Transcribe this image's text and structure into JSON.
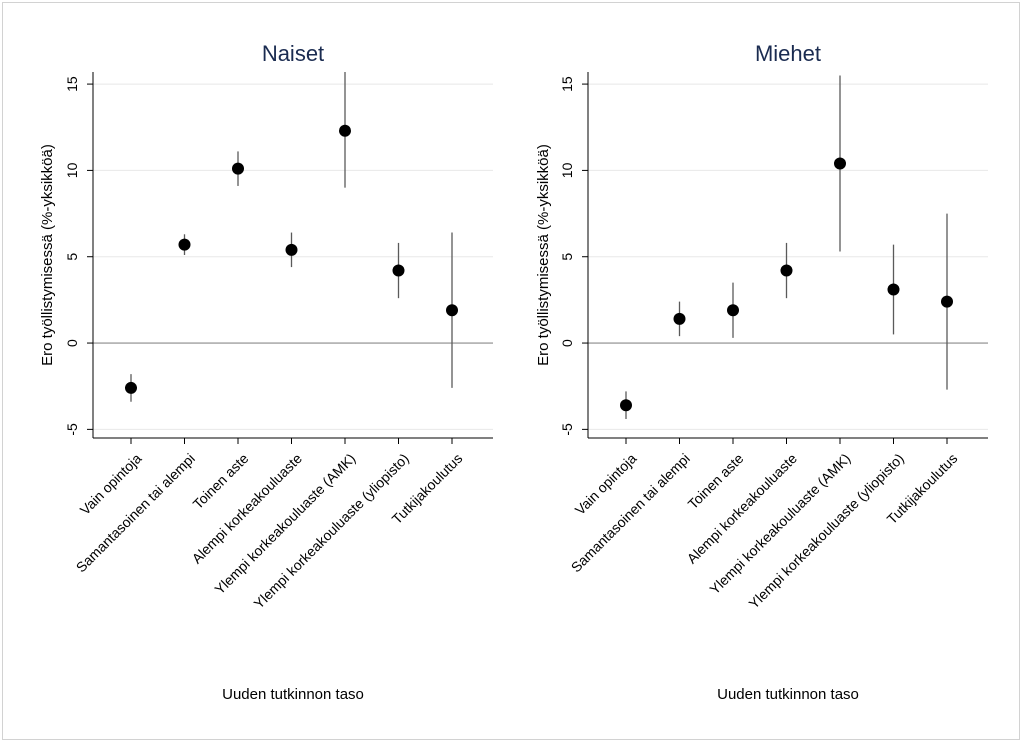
{
  "chart_data": [
    {
      "type": "scatter",
      "title": "Naiset",
      "xlabel": "Uuden tutkinnon taso",
      "ylabel": "Ero työllistymisessä (%-yksikköä)",
      "ylim": [
        -5.5,
        15.7
      ],
      "yticks": [
        -5,
        0,
        5,
        10,
        15
      ],
      "ytick_labels": [
        "-5",
        "0",
        "5",
        "10",
        "15"
      ],
      "grid": true,
      "reference_line_y": 0,
      "categories": [
        "Vain opintoja",
        "Samantasoinen tai alempi",
        "Toinen aste",
        "Alempi korkeakouluaste",
        "Ylempi korkeakouluaste (AMK)",
        "Ylempi korkeakouluaste (yliopisto)",
        "Tutkijakoulutus"
      ],
      "values": [
        -2.6,
        5.7,
        10.1,
        5.4,
        12.3,
        4.2,
        1.9
      ],
      "ci_low": [
        -3.4,
        5.1,
        9.1,
        4.4,
        9.0,
        2.6,
        -2.6
      ],
      "ci_high": [
        -1.8,
        6.3,
        11.1,
        6.4,
        15.7,
        5.8,
        6.4
      ]
    },
    {
      "type": "scatter",
      "title": "Miehet",
      "xlabel": "Uuden tutkinnon taso",
      "ylabel": "Ero työllistymisessä (%-yksikköä)",
      "ylim": [
        -5.5,
        15.7
      ],
      "yticks": [
        -5,
        0,
        5,
        10,
        15
      ],
      "ytick_labels": [
        "-5",
        "0",
        "5",
        "10",
        "15"
      ],
      "grid": true,
      "reference_line_y": 0,
      "categories": [
        "Vain opintoja",
        "Samantasoinen tai alempi",
        "Toinen aste",
        "Alempi korkeakouluaste",
        "Ylempi korkeakouluaste (AMK)",
        "Ylempi korkeakouluaste (yliopisto)",
        "Tutkijakoulutus"
      ],
      "values": [
        -3.6,
        1.4,
        1.9,
        4.2,
        10.4,
        3.1,
        2.4
      ],
      "ci_low": [
        -4.4,
        0.4,
        0.3,
        2.6,
        5.3,
        0.5,
        -2.7
      ],
      "ci_high": [
        -2.8,
        2.4,
        3.5,
        5.8,
        15.5,
        5.7,
        7.5
      ]
    }
  ],
  "colors": {
    "marker": "#000000",
    "ci_line": "#5a5a5a",
    "grid": "#e8e8e8",
    "zero_line": "#8a8a8a",
    "title": "#1a2b50",
    "axis": "#000000"
  }
}
